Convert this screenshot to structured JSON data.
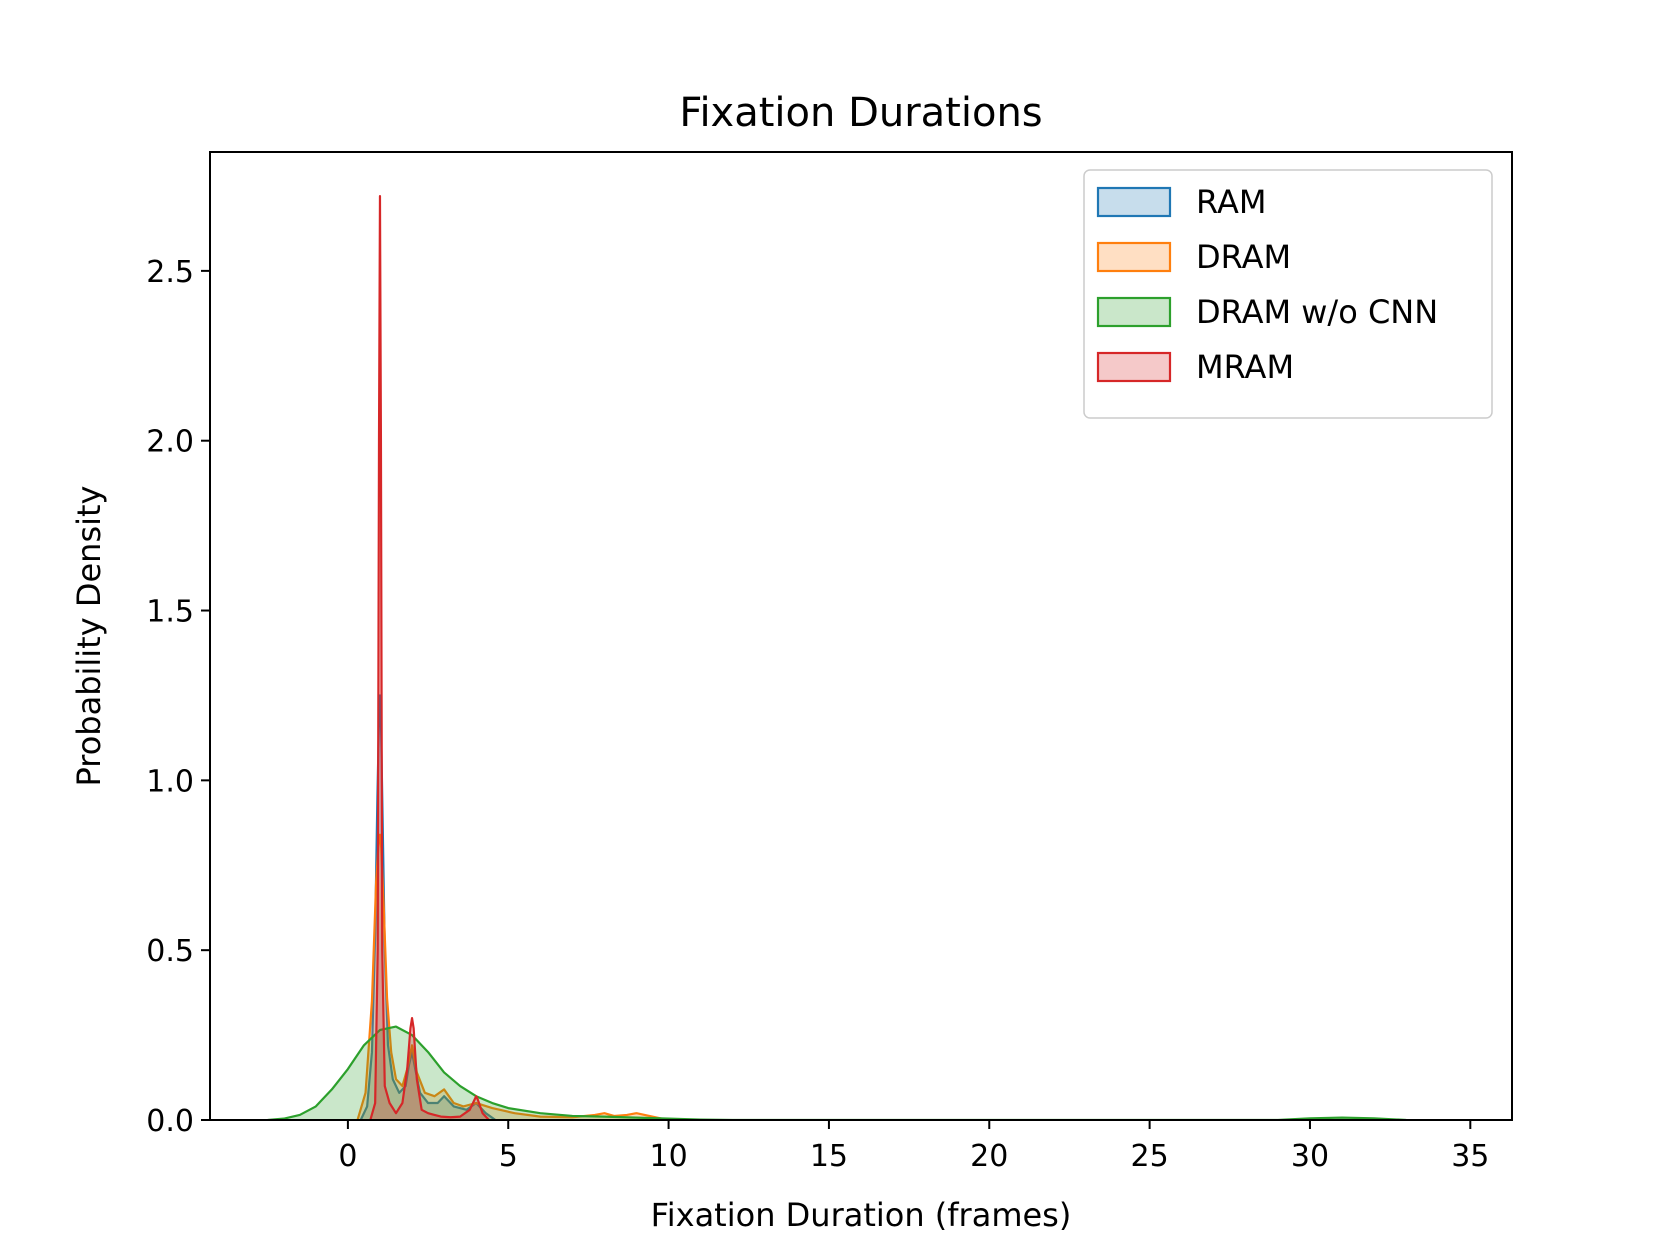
{
  "chart_data": {
    "type": "area",
    "title": "Fixation Durations",
    "xlabel": "Fixation Duration (frames)",
    "ylabel": "Probability Density",
    "xlim": [
      -4.3,
      36.3
    ],
    "ylim": [
      0,
      2.85
    ],
    "xticks": [
      0,
      5,
      10,
      15,
      20,
      25,
      30,
      35
    ],
    "xtick_labels": [
      "0",
      "5",
      "10",
      "15",
      "20",
      "25",
      "30",
      "35"
    ],
    "yticks": [
      0.0,
      0.5,
      1.0,
      1.5,
      2.0,
      2.5
    ],
    "ytick_labels": [
      "0.0",
      "0.5",
      "1.0",
      "1.5",
      "2.0",
      "2.5"
    ],
    "grid": false,
    "legend_position": "top-right",
    "series": [
      {
        "name": "RAM",
        "color": "#1f77b4",
        "x": [
          0.4,
          0.6,
          0.75,
          0.85,
          0.92,
          0.97,
          1.0,
          1.03,
          1.08,
          1.15,
          1.25,
          1.4,
          1.6,
          1.8,
          1.9,
          2.0,
          2.1,
          2.25,
          2.5,
          2.8,
          3.0,
          3.3,
          3.7,
          4.0,
          4.3,
          4.6
        ],
        "y": [
          0.0,
          0.04,
          0.2,
          0.55,
          0.95,
          1.18,
          1.25,
          1.18,
          0.9,
          0.5,
          0.22,
          0.12,
          0.08,
          0.1,
          0.16,
          0.2,
          0.15,
          0.08,
          0.05,
          0.05,
          0.07,
          0.04,
          0.03,
          0.05,
          0.02,
          0.0
        ]
      },
      {
        "name": "DRAM",
        "color": "#ff7f0e",
        "x": [
          0.3,
          0.55,
          0.75,
          0.88,
          0.96,
          1.0,
          1.04,
          1.12,
          1.22,
          1.35,
          1.5,
          1.7,
          1.85,
          2.0,
          2.15,
          2.4,
          2.7,
          3.0,
          3.3,
          3.6,
          4.0,
          4.5,
          5.2,
          6.0,
          7.0,
          7.7,
          8.0,
          8.3,
          8.7,
          9.0,
          9.4,
          9.8,
          10.2
        ],
        "y": [
          0.0,
          0.08,
          0.35,
          0.7,
          0.82,
          0.84,
          0.8,
          0.62,
          0.36,
          0.2,
          0.12,
          0.1,
          0.15,
          0.22,
          0.14,
          0.08,
          0.07,
          0.09,
          0.05,
          0.04,
          0.05,
          0.035,
          0.02,
          0.01,
          0.008,
          0.015,
          0.02,
          0.012,
          0.015,
          0.02,
          0.012,
          0.004,
          0.0
        ]
      },
      {
        "name": "DRAM w/o CNN",
        "color": "#2ca02c",
        "x": [
          -2.5,
          -2.0,
          -1.5,
          -1.0,
          -0.5,
          0.0,
          0.5,
          1.0,
          1.5,
          2.0,
          2.5,
          3.0,
          3.5,
          4.0,
          4.5,
          5.0,
          6.0,
          7.0,
          8.0,
          9.0,
          10.0,
          11.0,
          12.0,
          29.0,
          30.0,
          31.0,
          32.0,
          33.0
        ],
        "y": [
          0.0,
          0.004,
          0.015,
          0.04,
          0.09,
          0.15,
          0.22,
          0.265,
          0.275,
          0.25,
          0.2,
          0.14,
          0.1,
          0.07,
          0.05,
          0.035,
          0.02,
          0.012,
          0.01,
          0.007,
          0.004,
          0.001,
          0.0,
          0.0,
          0.005,
          0.007,
          0.005,
          0.0
        ]
      },
      {
        "name": "MRAM",
        "color": "#d62728",
        "x": [
          0.7,
          0.85,
          0.93,
          0.97,
          1.0,
          1.03,
          1.07,
          1.15,
          1.3,
          1.5,
          1.7,
          1.85,
          1.95,
          2.0,
          2.05,
          2.15,
          2.3,
          2.5,
          2.7,
          2.9,
          3.2,
          3.5,
          3.8,
          3.95,
          4.0,
          4.05,
          4.2,
          4.4
        ],
        "y": [
          0.0,
          0.05,
          0.5,
          2.0,
          2.72,
          2.0,
          0.5,
          0.1,
          0.05,
          0.02,
          0.05,
          0.15,
          0.27,
          0.3,
          0.27,
          0.12,
          0.03,
          0.02,
          0.015,
          0.01,
          0.008,
          0.01,
          0.03,
          0.06,
          0.07,
          0.06,
          0.02,
          0.0
        ]
      }
    ]
  }
}
